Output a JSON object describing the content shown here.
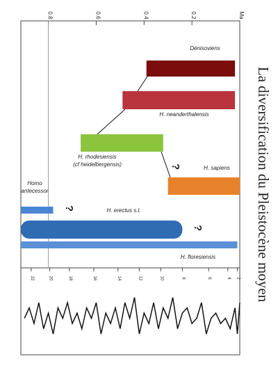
{
  "chart_data": [
    {
      "type": "range-bar",
      "title": "La diversification du Pleistocène moyen",
      "xlim": [
        0.915,
        0
      ],
      "xticks": [
        0.8,
        0.6,
        0.4,
        0.2,
        {
          "value": 0,
          "label": "Ma"
        }
      ],
      "series": [
        {
          "name": "Dénisoviens",
          "color": "#7a0c0c",
          "ranges": [
            [
              0.39,
              0.02
            ]
          ]
        },
        {
          "name": "H. neanderthalensis",
          "color": "#b9343c",
          "ranges": [
            [
              0.49,
              0.02
            ]
          ]
        },
        {
          "name": "H. rhodesiensis",
          "name2": "(cf heidelbergensis)",
          "color": "#8cc43e",
          "ranges": [
            [
              0.665,
              0.32
            ]
          ]
        },
        {
          "name": "H. sapiens",
          "color": "#e8822a",
          "ranges": [
            [
              0.3,
              0.0
            ]
          ]
        },
        {
          "name": "Homo",
          "name2": "antecessor",
          "color": "#4a86d4",
          "ranges": [
            [
              0.915,
              0.78
            ]
          ]
        },
        {
          "name": "H. erectus s.l.",
          "color": "#2f6cb3",
          "ranges": [
            [
              0.915,
              0.24
            ]
          ]
        },
        {
          "name": "H. floresiensis",
          "color": "#5b8fd6",
          "ranges": [
            [
              0.915,
              0.01
            ]
          ]
        }
      ],
      "question_marks": [
        "?",
        "?",
        "?"
      ]
    },
    {
      "type": "line",
      "xlim": [
        0.915,
        0
      ],
      "ylim": [
        0,
        10
      ],
      "xticks": [
        {
          "value": 0.872,
          "label": "22"
        },
        {
          "value": 0.794,
          "label": "20"
        },
        {
          "value": 0.712,
          "label": "18"
        },
        {
          "value": 0.61,
          "label": "16"
        },
        {
          "value": 0.509,
          "label": "14"
        },
        {
          "value": 0.42,
          "label": "12"
        },
        {
          "value": 0.33,
          "label": "10"
        },
        {
          "value": 0.24,
          "label": "8"
        },
        {
          "value": 0.13,
          "label": "6"
        },
        {
          "value": 0.05,
          "label": "4"
        },
        {
          "value": 0.01,
          "label": "2"
        }
      ],
      "x": [
        0.9,
        0.88,
        0.86,
        0.84,
        0.82,
        0.8,
        0.78,
        0.76,
        0.74,
        0.72,
        0.7,
        0.68,
        0.66,
        0.64,
        0.62,
        0.6,
        0.58,
        0.56,
        0.54,
        0.52,
        0.5,
        0.48,
        0.46,
        0.44,
        0.42,
        0.4,
        0.38,
        0.36,
        0.34,
        0.32,
        0.3,
        0.28,
        0.26,
        0.24,
        0.22,
        0.2,
        0.18,
        0.16,
        0.14,
        0.12,
        0.1,
        0.08,
        0.06,
        0.04,
        0.02,
        0.01,
        0.0
      ],
      "values": [
        5,
        7,
        4,
        8,
        3,
        6,
        2,
        7,
        5,
        8,
        4,
        6,
        3,
        7,
        5,
        8,
        2,
        6,
        4,
        7,
        3,
        8,
        5,
        9,
        2,
        6,
        4,
        8,
        3,
        7,
        5,
        9,
        3,
        6,
        7,
        4,
        5,
        8,
        2,
        5,
        6,
        4,
        5,
        3,
        7,
        2,
        8
      ]
    }
  ]
}
